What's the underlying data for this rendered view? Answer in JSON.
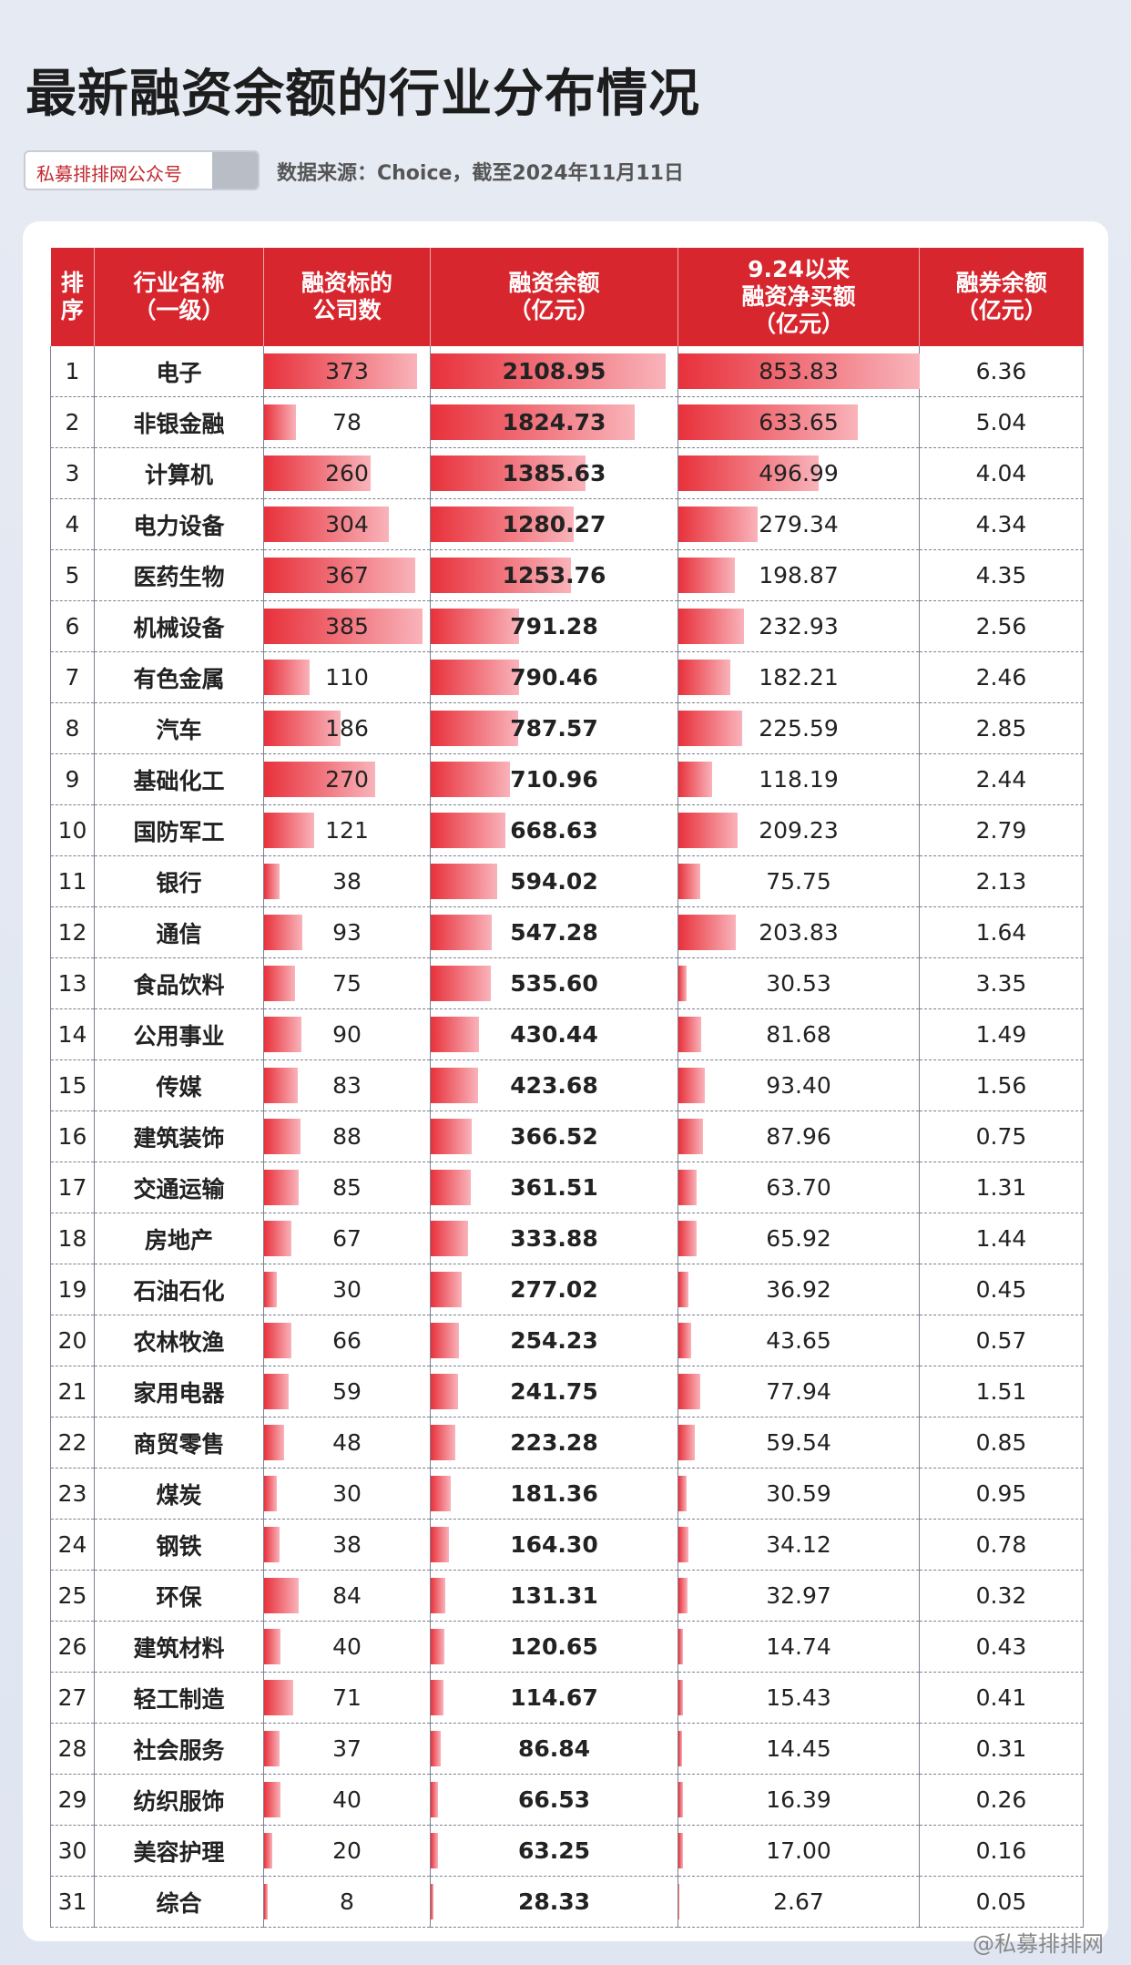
{
  "header": {
    "title": "最新融资余额的行业分布情况",
    "search_label": "私募排排网公众号",
    "source": "数据来源：Choice，截至2024年11月11日"
  },
  "table": {
    "columns": [
      "排\n序",
      "行业名称\n（一级）",
      "融资标的\n公司数",
      "融资余额\n（亿元）",
      "9.24以来\n融资净买额\n（亿元）",
      "融券余额\n（亿元）"
    ],
    "rows": [
      [
        "1",
        "电子",
        "373",
        "2108.95",
        "853.83",
        "6.36"
      ],
      [
        "2",
        "非银金融",
        "78",
        "1824.73",
        "633.65",
        "5.04"
      ],
      [
        "3",
        "计算机",
        "260",
        "1385.63",
        "496.99",
        "4.04"
      ],
      [
        "4",
        "电力设备",
        "304",
        "1280.27",
        "279.34",
        "4.34"
      ],
      [
        "5",
        "医药生物",
        "367",
        "1253.76",
        "198.87",
        "4.35"
      ],
      [
        "6",
        "机械设备",
        "385",
        "791.28",
        "232.93",
        "2.56"
      ],
      [
        "7",
        "有色金属",
        "110",
        "790.46",
        "182.21",
        "2.46"
      ],
      [
        "8",
        "汽车",
        "186",
        "787.57",
        "225.59",
        "2.85"
      ],
      [
        "9",
        "基础化工",
        "270",
        "710.96",
        "118.19",
        "2.44"
      ],
      [
        "10",
        "国防军工",
        "121",
        "668.63",
        "209.23",
        "2.79"
      ],
      [
        "11",
        "银行",
        "38",
        "594.02",
        "75.75",
        "2.13"
      ],
      [
        "12",
        "通信",
        "93",
        "547.28",
        "203.83",
        "1.64"
      ],
      [
        "13",
        "食品饮料",
        "75",
        "535.60",
        "30.53",
        "3.35"
      ],
      [
        "14",
        "公用事业",
        "90",
        "430.44",
        "81.68",
        "1.49"
      ],
      [
        "15",
        "传媒",
        "83",
        "423.68",
        "93.40",
        "1.56"
      ],
      [
        "16",
        "建筑装饰",
        "88",
        "366.52",
        "87.96",
        "0.75"
      ],
      [
        "17",
        "交通运输",
        "85",
        "361.51",
        "63.70",
        "1.31"
      ],
      [
        "18",
        "房地产",
        "67",
        "333.88",
        "65.92",
        "1.44"
      ],
      [
        "19",
        "石油石化",
        "30",
        "277.02",
        "36.92",
        "0.45"
      ],
      [
        "20",
        "农林牧渔",
        "66",
        "254.23",
        "43.65",
        "0.57"
      ],
      [
        "21",
        "家用电器",
        "59",
        "241.75",
        "77.94",
        "1.51"
      ],
      [
        "22",
        "商贸零售",
        "48",
        "223.28",
        "59.54",
        "0.85"
      ],
      [
        "23",
        "煤炭",
        "30",
        "181.36",
        "30.59",
        "0.95"
      ],
      [
        "24",
        "钢铁",
        "38",
        "164.30",
        "34.12",
        "0.78"
      ],
      [
        "25",
        "环保",
        "84",
        "131.31",
        "32.97",
        "0.32"
      ],
      [
        "26",
        "建筑材料",
        "40",
        "120.65",
        "14.74",
        "0.43"
      ],
      [
        "27",
        "轻工制造",
        "71",
        "114.67",
        "15.43",
        "0.41"
      ],
      [
        "28",
        "社会服务",
        "37",
        "86.84",
        "14.45",
        "0.31"
      ],
      [
        "29",
        "纺织服饰",
        "40",
        "66.53",
        "16.39",
        "0.26"
      ],
      [
        "30",
        "美容护理",
        "20",
        "63.25",
        "17.00",
        "0.16"
      ],
      [
        "31",
        "综合",
        "8",
        "28.33",
        "2.67",
        "0.05"
      ]
    ]
  },
  "footer": {
    "watermark": "@私募排排网"
  }
}
